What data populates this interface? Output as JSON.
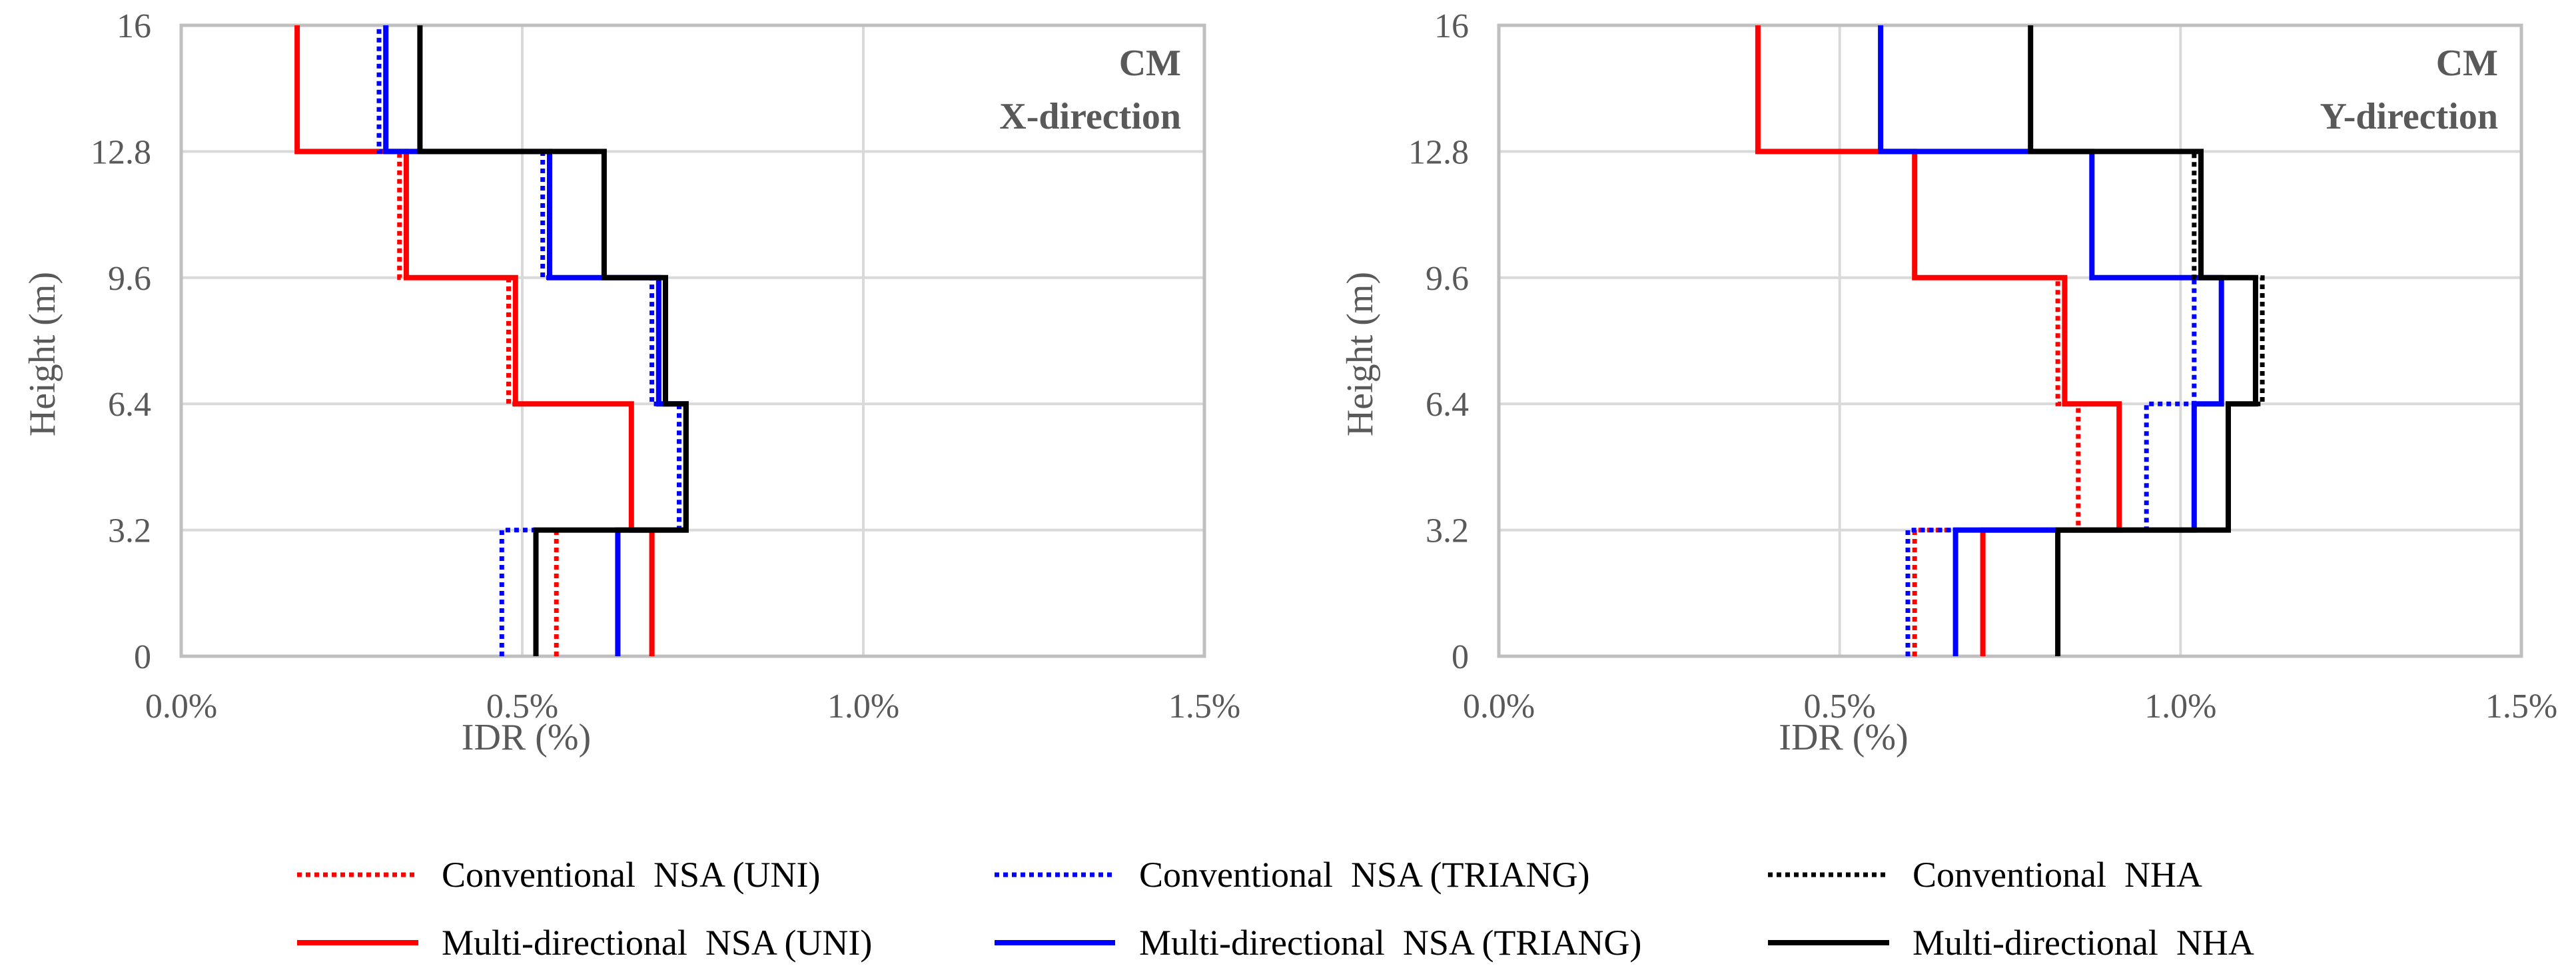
{
  "chart_data": {
    "type": "line",
    "panels": [
      {
        "panel_label_line1": "CM",
        "panel_label_line2": "X-direction",
        "xlabel": "IDR (%)",
        "ylabel": "Height (m)",
        "xlim": [
          0,
          1.5
        ],
        "ylim": [
          0,
          16
        ],
        "xticks": [
          "0.0%",
          "0.5%",
          "1.0%",
          "1.5%"
        ],
        "xtick_values": [
          0,
          0.5,
          1.0,
          1.5
        ],
        "yticks": [
          "0",
          "3.2",
          "6.4",
          "9.6",
          "12.8",
          "16"
        ],
        "ytick_values": [
          0,
          3.2,
          6.4,
          9.6,
          12.8,
          16
        ],
        "grid": true,
        "storey_heights": [
          0,
          3.2,
          6.4,
          9.6,
          12.8,
          16
        ],
        "series": [
          {
            "name": "Conventional  NSA (UNI)",
            "color": "#ff0000",
            "style": "dotted",
            "storey_idr": [
              0.55,
              0.66,
              0.48,
              0.32,
              0.17
            ]
          },
          {
            "name": "Multi-directional  NSA (UNI)",
            "color": "#ff0000",
            "style": "solid",
            "storey_idr": [
              0.69,
              0.66,
              0.49,
              0.33,
              0.17
            ]
          },
          {
            "name": "Conventional  NSA (TRIANG)",
            "color": "#0000ff",
            "style": "dotted",
            "storey_idr": [
              0.47,
              0.73,
              0.69,
              0.53,
              0.29
            ]
          },
          {
            "name": "Multi-directional  NSA (TRIANG)",
            "color": "#0000ff",
            "style": "solid",
            "storey_idr": [
              0.64,
              0.74,
              0.7,
              0.54,
              0.3
            ]
          },
          {
            "name": "Conventional  NHA",
            "color": "#000000",
            "style": "dotted",
            "storey_idr": [
              0.52,
              0.74,
              0.71,
              0.62,
              0.35
            ]
          },
          {
            "name": "Multi-directional  NHA",
            "color": "#000000",
            "style": "solid",
            "storey_idr": [
              0.52,
              0.74,
              0.71,
              0.62,
              0.35
            ]
          }
        ]
      },
      {
        "panel_label_line1": "CM",
        "panel_label_line2": "Y-direction",
        "xlabel": "IDR (%)",
        "ylabel": "Height (m)",
        "xlim": [
          0,
          1.5
        ],
        "ylim": [
          0,
          16
        ],
        "xticks": [
          "0.0%",
          "0.5%",
          "1.0%",
          "1.5%"
        ],
        "xtick_values": [
          0,
          0.5,
          1.0,
          1.5
        ],
        "yticks": [
          "0",
          "3.2",
          "6.4",
          "9.6",
          "12.8",
          "16"
        ],
        "ytick_values": [
          0,
          3.2,
          6.4,
          9.6,
          12.8,
          16
        ],
        "grid": true,
        "storey_heights": [
          0,
          3.2,
          6.4,
          9.6,
          12.8,
          16
        ],
        "series": [
          {
            "name": "Conventional  NSA (UNI)",
            "color": "#ff0000",
            "style": "dotted",
            "storey_idr": [
              0.61,
              0.85,
              0.82,
              0.61,
              0.38
            ]
          },
          {
            "name": "Multi-directional  NSA (UNI)",
            "color": "#ff0000",
            "style": "solid",
            "storey_idr": [
              0.71,
              0.91,
              0.83,
              0.61,
              0.38
            ]
          },
          {
            "name": "Conventional  NSA (TRIANG)",
            "color": "#0000ff",
            "style": "dotted",
            "storey_idr": [
              0.6,
              0.95,
              1.02,
              0.87,
              0.56
            ]
          },
          {
            "name": "Multi-directional  NSA (TRIANG)",
            "color": "#0000ff",
            "style": "solid",
            "storey_idr": [
              0.67,
              1.02,
              1.06,
              0.87,
              0.56
            ]
          },
          {
            "name": "Conventional  NHA",
            "color": "#000000",
            "style": "dotted",
            "storey_idr": [
              0.82,
              1.07,
              1.12,
              1.02,
              0.78
            ]
          },
          {
            "name": "Multi-directional  NHA",
            "color": "#000000",
            "style": "solid",
            "storey_idr": [
              0.82,
              1.07,
              1.11,
              1.03,
              0.78
            ]
          }
        ]
      }
    ]
  }
}
